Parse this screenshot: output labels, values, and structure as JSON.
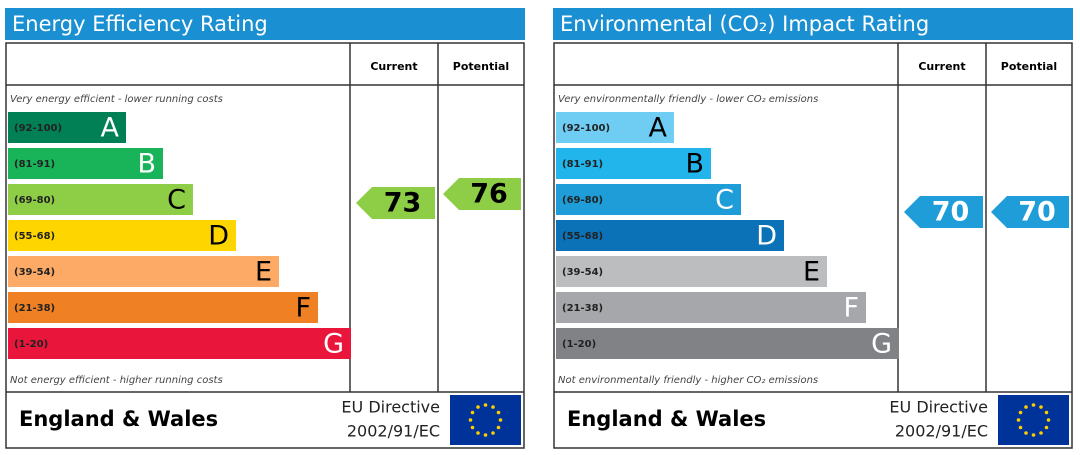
{
  "panels": [
    {
      "title": "Energy Efficiency Rating",
      "header": {
        "current": "Current",
        "potential": "Potential"
      },
      "top_note": "Very energy efficient - lower running costs",
      "bottom_note": "Not energy efficient - higher running costs",
      "bands": [
        {
          "range": "(92-100)",
          "letter": "A",
          "color": "#008054",
          "text_color": "#ffffff"
        },
        {
          "range": "(81-91)",
          "letter": "B",
          "color": "#19b459",
          "text_color": "#ffffff"
        },
        {
          "range": "(69-80)",
          "letter": "C",
          "color": "#8dce46",
          "text_color": "#000000"
        },
        {
          "range": "(55-68)",
          "letter": "D",
          "color": "#ffd500",
          "text_color": "#000000"
        },
        {
          "range": "(39-54)",
          "letter": "E",
          "color": "#fcaa65",
          "text_color": "#000000"
        },
        {
          "range": "(21-38)",
          "letter": "F",
          "color": "#ef8023",
          "text_color": "#000000"
        },
        {
          "range": "(1-20)",
          "letter": "G",
          "color": "#e9153b",
          "text_color": "#ffffff"
        }
      ],
      "current": 73,
      "potential": 76,
      "arrow_color": "#8dce46",
      "arrow_text_color": "#000000",
      "footer": {
        "region": "England & Wales",
        "directive": "EU Directive",
        "code": "2002/91/EC"
      }
    },
    {
      "title": "Environmental (CO₂) Impact Rating",
      "header": {
        "current": "Current",
        "potential": "Potential"
      },
      "top_note": "Very environmentally friendly - lower CO₂ emissions",
      "bottom_note": "Not environmentally friendly - higher CO₂ emissions",
      "bands": [
        {
          "range": "(92-100)",
          "letter": "A",
          "color": "#6fcdf4",
          "text_color": "#000000"
        },
        {
          "range": "(81-91)",
          "letter": "B",
          "color": "#22b5eb",
          "text_color": "#000000"
        },
        {
          "range": "(69-80)",
          "letter": "C",
          "color": "#1e9dd8",
          "text_color": "#ffffff"
        },
        {
          "range": "(55-68)",
          "letter": "D",
          "color": "#0b72b8",
          "text_color": "#ffffff"
        },
        {
          "range": "(39-54)",
          "letter": "E",
          "color": "#bbbdbf",
          "text_color": "#000000"
        },
        {
          "range": "(21-38)",
          "letter": "F",
          "color": "#a5a7aa",
          "text_color": "#ffffff"
        },
        {
          "range": "(1-20)",
          "letter": "G",
          "color": "#808285",
          "text_color": "#ffffff"
        }
      ],
      "current": 70,
      "potential": 70,
      "arrow_color": "#1e9dd8",
      "arrow_text_color": "#ffffff",
      "footer": {
        "region": "England & Wales",
        "directive": "EU Directive",
        "code": "2002/91/EC"
      }
    }
  ]
}
